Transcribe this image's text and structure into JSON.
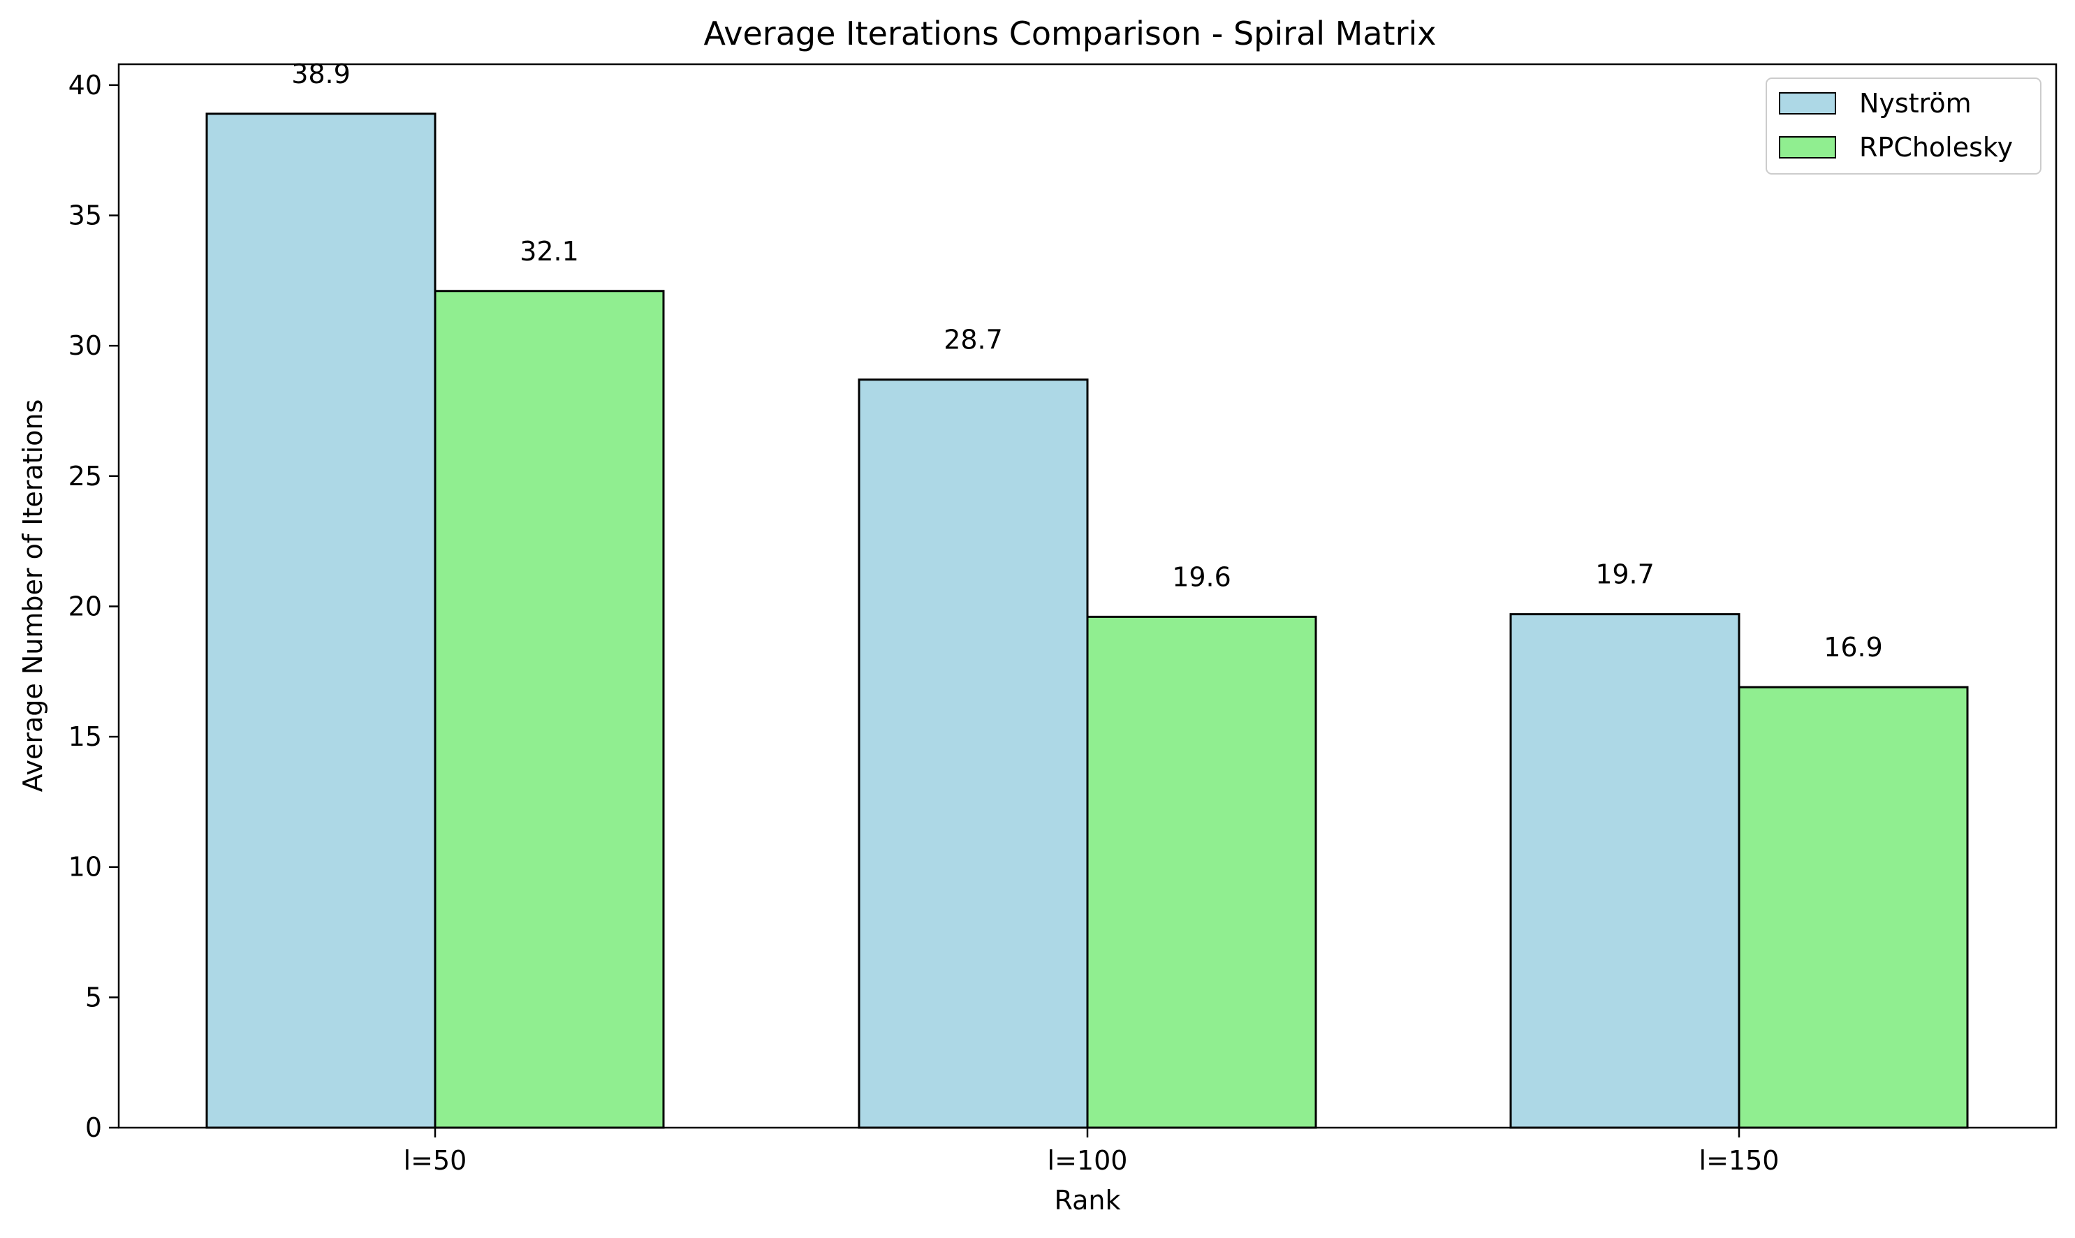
{
  "chart_data": {
    "type": "bar",
    "title": "Average Iterations Comparison - Spiral Matrix",
    "xlabel": "Rank",
    "ylabel": "Average Number of Iterations",
    "categories": [
      "l=50",
      "l=100",
      "l=150"
    ],
    "series": [
      {
        "name": "Nyström",
        "values": [
          38.9,
          28.7,
          19.7
        ],
        "color": "#add8e6",
        "labels": [
          "38.9",
          "28.7",
          "19.7"
        ]
      },
      {
        "name": "RPCholesky",
        "values": [
          32.1,
          19.6,
          16.9
        ],
        "color": "#90ee90",
        "labels": [
          "32.1",
          "19.6",
          "16.9"
        ]
      }
    ],
    "ylim": [
      0,
      40.8
    ],
    "yticks": [
      "0",
      "5",
      "10",
      "15",
      "20",
      "25",
      "30",
      "35",
      "40"
    ],
    "grid": false,
    "legend": "top-right"
  }
}
